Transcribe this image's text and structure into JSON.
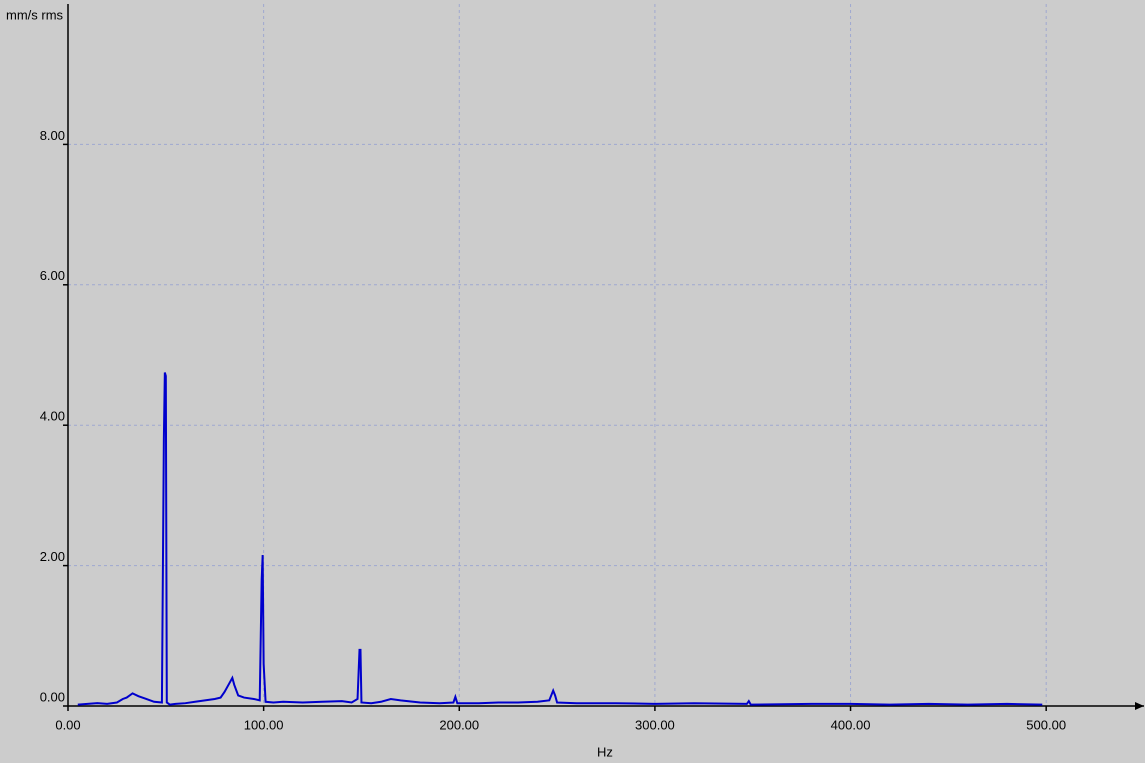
{
  "chart_data": {
    "type": "line",
    "y_label": "mm/s rms",
    "x_label": "Hz",
    "color": "#0000cc",
    "grid": true,
    "xlim": [
      0,
      550
    ],
    "ylim": [
      0,
      10
    ],
    "xticks": [
      {
        "value": 0,
        "label": "0.00"
      },
      {
        "value": 100,
        "label": "100.00"
      },
      {
        "value": 200,
        "label": "200.00"
      },
      {
        "value": 300,
        "label": "300.00"
      },
      {
        "value": 400,
        "label": "400.00"
      },
      {
        "value": 500,
        "label": "500.00"
      }
    ],
    "yticks": [
      {
        "value": 0,
        "label": "0.00"
      },
      {
        "value": 2,
        "label": "2.00"
      },
      {
        "value": 4,
        "label": "4.00"
      },
      {
        "value": 6,
        "label": "6.00"
      },
      {
        "value": 8,
        "label": "8.00"
      }
    ],
    "x": [
      5,
      10,
      15,
      20,
      25,
      28,
      30,
      33,
      36,
      40,
      44,
      48,
      49,
      49.5,
      50,
      50.5,
      52,
      55,
      60,
      65,
      70,
      75,
      78,
      80,
      82,
      84,
      85,
      87,
      90,
      95,
      98,
      99,
      99.5,
      100,
      101,
      105,
      110,
      120,
      130,
      140,
      145,
      148,
      149,
      149.5,
      150,
      155,
      160,
      165,
      170,
      180,
      190,
      197,
      198,
      199,
      210,
      220,
      230,
      240,
      246,
      248,
      249,
      250,
      260,
      280,
      300,
      320,
      347,
      348,
      349,
      380,
      400,
      420,
      440,
      460,
      480,
      498
    ],
    "values": [
      0.02,
      0.03,
      0.04,
      0.03,
      0.05,
      0.1,
      0.12,
      0.18,
      0.14,
      0.1,
      0.06,
      0.05,
      3.8,
      4.75,
      4.7,
      0.05,
      0.02,
      0.03,
      0.04,
      0.06,
      0.08,
      0.1,
      0.12,
      0.2,
      0.3,
      0.4,
      0.3,
      0.15,
      0.12,
      0.1,
      0.08,
      1.8,
      2.15,
      0.6,
      0.06,
      0.05,
      0.06,
      0.05,
      0.06,
      0.07,
      0.05,
      0.1,
      0.8,
      0.8,
      0.05,
      0.04,
      0.06,
      0.1,
      0.08,
      0.05,
      0.04,
      0.05,
      0.13,
      0.04,
      0.04,
      0.05,
      0.05,
      0.06,
      0.08,
      0.22,
      0.15,
      0.05,
      0.04,
      0.04,
      0.03,
      0.04,
      0.03,
      0.07,
      0.02,
      0.03,
      0.03,
      0.02,
      0.03,
      0.02,
      0.03,
      0.02
    ]
  }
}
